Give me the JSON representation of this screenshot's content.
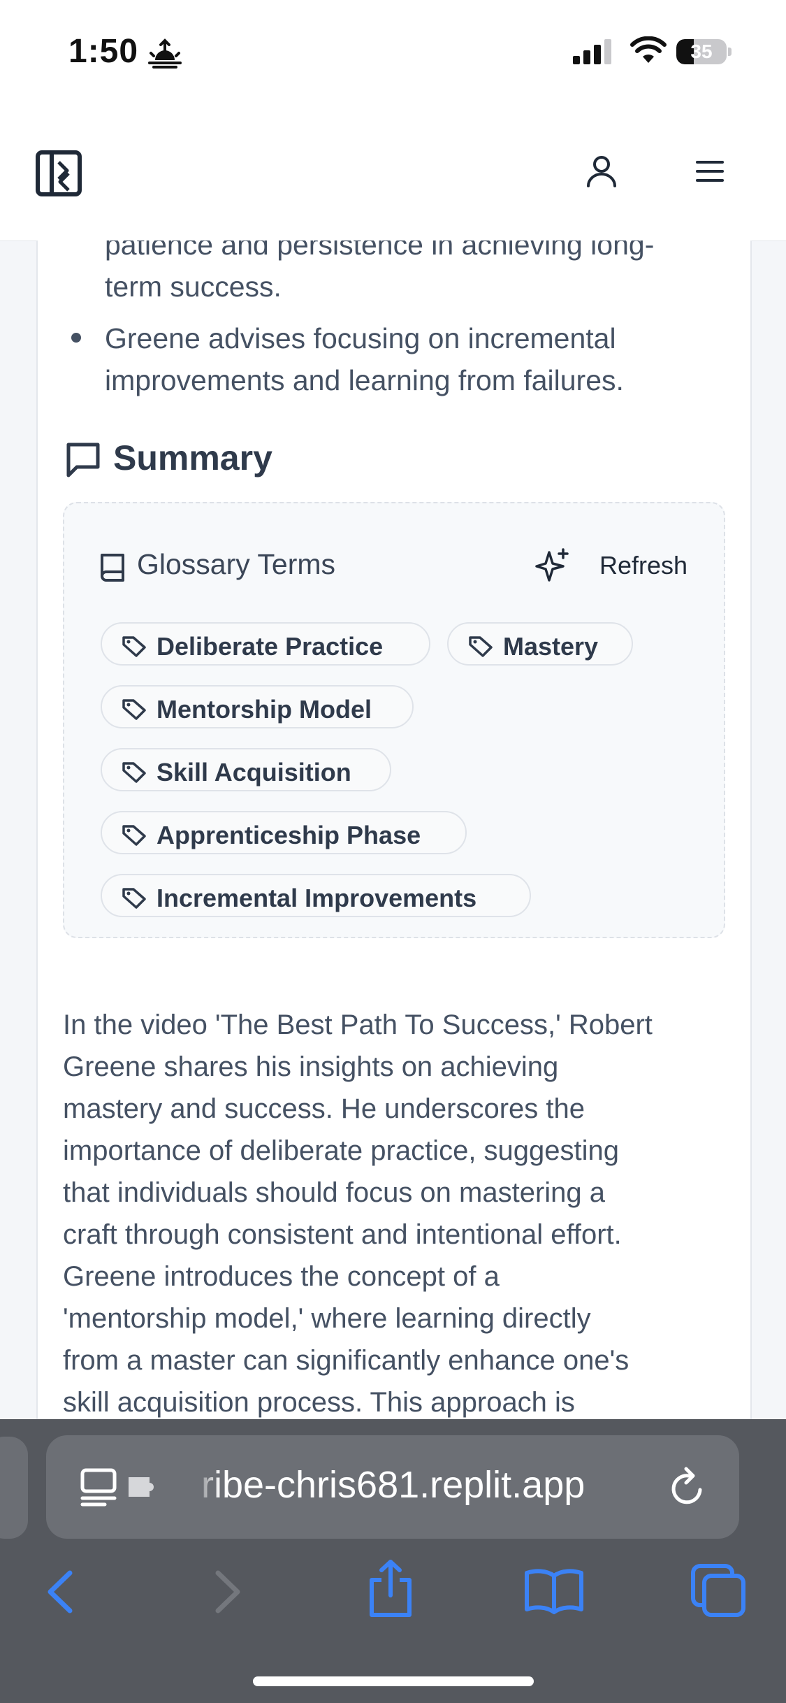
{
  "status_bar": {
    "time": "1:50",
    "battery_percent": 35,
    "battery_label": "35"
  },
  "header": {
    "icons": [
      "sidebar-toggle-icon",
      "user-icon",
      "hamburger-menu-icon"
    ]
  },
  "content": {
    "bullet_lines": [
      "patience and persistence in achieving long-",
      "term success.",
      "Greene advises focusing on incremental",
      "improvements and learning from failures."
    ],
    "summary_title": "Summary",
    "glossary": {
      "title": "Glossary Terms",
      "refresh_label": "Refresh",
      "tags": [
        "Deliberate Practice",
        "Mastery",
        "Mentorship Model",
        "Skill Acquisition",
        "Apprenticeship Phase",
        "Incremental Improvements"
      ]
    },
    "summary_lines": [
      "In the video 'The Best Path To Success,' Robert",
      "Greene shares his insights on achieving",
      "mastery and success. He underscores the",
      "importance of deliberate practice, suggesting",
      "that individuals should focus on mastering a",
      "craft through consistent and intentional effort.",
      "Greene introduces the concept of a",
      "'mentorship model,' where learning directly",
      "from a master can significantly enhance one's",
      "skill acquisition process. This approach is"
    ]
  },
  "browser": {
    "url": "ribe-chris681.replit.app",
    "accent_color": "#3b82f6"
  }
}
